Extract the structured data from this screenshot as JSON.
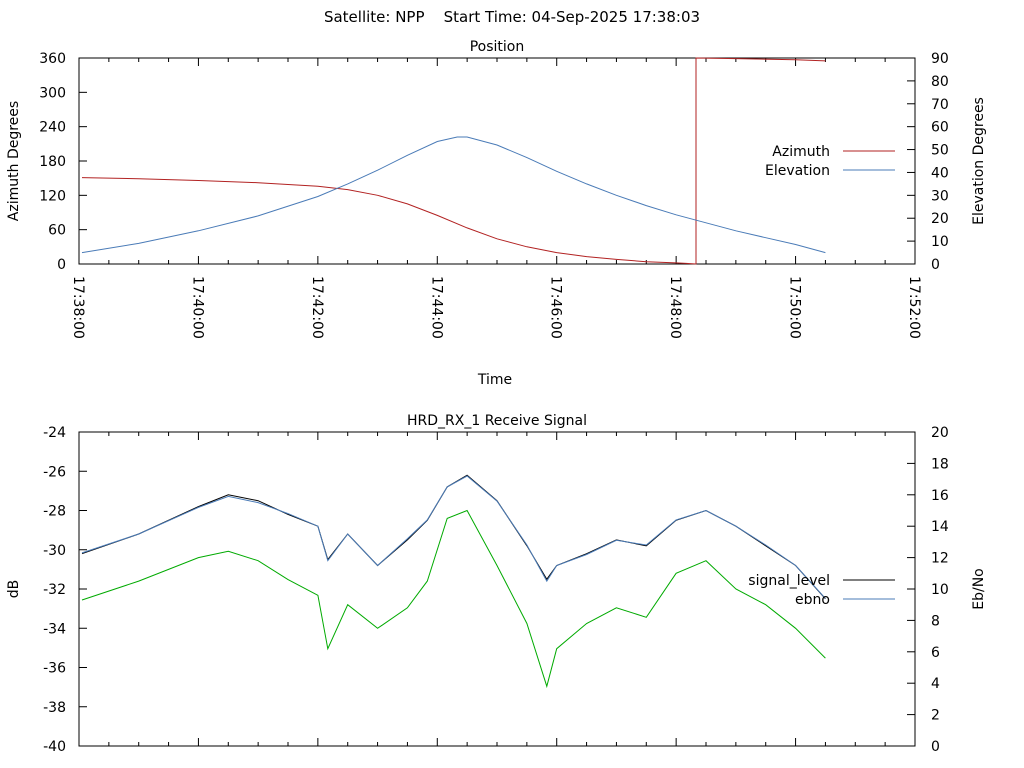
{
  "header": {
    "title": "Satellite: NPP    Start Time: 04-Sep-2025 17:38:03"
  },
  "chart_data": [
    {
      "type": "line",
      "title": "Position",
      "xlabel": "Time",
      "ylabel": "Azimuth Degrees",
      "y2label": "Elevation Degrees",
      "xlim": [
        "17:38:00",
        "17:52:00"
      ],
      "ylim": [
        0,
        360
      ],
      "y2lim": [
        0,
        90
      ],
      "xticks": [
        "17:38:00",
        "17:40:00",
        "17:42:00",
        "17:44:00",
        "17:46:00",
        "17:48:00",
        "17:50:00",
        "17:52:00"
      ],
      "yticks": [
        "0",
        "60",
        "120",
        "180",
        "240",
        "300",
        "360"
      ],
      "y2ticks": [
        "0",
        "10",
        "20",
        "30",
        "40",
        "50",
        "60",
        "70",
        "80",
        "90"
      ],
      "legend_position": "right",
      "series": [
        {
          "name": "Azimuth",
          "axis": "y",
          "color": "#b22222",
          "x": [
            "17:38:03",
            "17:39:00",
            "17:40:00",
            "17:41:00",
            "17:42:00",
            "17:42:30",
            "17:43:00",
            "17:43:30",
            "17:44:00",
            "17:44:30",
            "17:45:00",
            "17:45:30",
            "17:46:00",
            "17:46:30",
            "17:47:00",
            "17:47:30",
            "17:48:00",
            "17:48:10",
            "17:48:20",
            "17:48:20",
            "17:49:00",
            "17:50:00",
            "17:50:30"
          ],
          "values": [
            151,
            149,
            146,
            142,
            136,
            130,
            120,
            105,
            85,
            63,
            44,
            30,
            20,
            13,
            8,
            4,
            2,
            1,
            0,
            360,
            359,
            357,
            355
          ]
        },
        {
          "name": "Elevation",
          "axis": "y2",
          "color": "#4a7bb7",
          "x": [
            "17:38:03",
            "17:39:00",
            "17:40:00",
            "17:41:00",
            "17:42:00",
            "17:42:30",
            "17:43:00",
            "17:43:30",
            "17:44:00",
            "17:44:20",
            "17:44:30",
            "17:45:00",
            "17:45:30",
            "17:46:00",
            "17:46:30",
            "17:47:00",
            "17:47:30",
            "17:48:00",
            "17:48:30",
            "17:49:00",
            "17:49:30",
            "17:50:00",
            "17:50:30"
          ],
          "values": [
            5,
            9,
            14.5,
            21,
            29.5,
            35,
            41,
            47.5,
            53.5,
            55.5,
            55.5,
            52,
            46.5,
            40.5,
            35,
            30,
            25.5,
            21.5,
            18,
            14.5,
            11.5,
            8.5,
            5
          ]
        }
      ]
    },
    {
      "type": "line",
      "title": "HRD_RX_1 Receive Signal",
      "xlabel": "",
      "ylabel": "dB",
      "y2label": "Eb/No",
      "ylim": [
        -40,
        -24
      ],
      "y2lim": [
        0,
        20
      ],
      "yticks": [
        "-40",
        "-38",
        "-36",
        "-34",
        "-32",
        "-30",
        "-28",
        "-26",
        "-24"
      ],
      "y2ticks": [
        "0",
        "2",
        "4",
        "6",
        "8",
        "10",
        "12",
        "14",
        "16",
        "18",
        "20"
      ],
      "legend_position": "right",
      "series": [
        {
          "name": "signal_level",
          "axis": "y",
          "color": "#000000",
          "x": [
            "17:38:03",
            "17:39:00",
            "17:40:00",
            "17:40:30",
            "17:41:00",
            "17:41:30",
            "17:42:00",
            "17:42:10",
            "17:42:30",
            "17:43:00",
            "17:43:30",
            "17:43:50",
            "17:44:10",
            "17:44:30",
            "17:45:00",
            "17:45:30",
            "17:45:50",
            "17:46:00",
            "17:46:30",
            "17:47:00",
            "17:47:30",
            "17:48:00",
            "17:48:30",
            "17:49:00",
            "17:49:30",
            "17:50:00",
            "17:50:30"
          ],
          "values": [
            -30.2,
            -29.2,
            -27.8,
            -27.2,
            -27.5,
            -28.2,
            -28.8,
            -30.5,
            -29.2,
            -30.8,
            -29.5,
            -28.5,
            -26.8,
            -26.2,
            -27.5,
            -29.8,
            -31.5,
            -30.8,
            -30.2,
            -29.5,
            -29.8,
            -28.5,
            -28.0,
            -28.8,
            -29.8,
            -30.8,
            -32.5
          ]
        },
        {
          "name": "ebno",
          "axis": "y2",
          "color": "#4a7bb7",
          "x": [
            "17:38:03",
            "17:39:00",
            "17:40:00",
            "17:40:30",
            "17:41:00",
            "17:41:30",
            "17:42:00",
            "17:42:10",
            "17:42:30",
            "17:43:00",
            "17:43:30",
            "17:43:50",
            "17:44:10",
            "17:44:30",
            "17:45:00",
            "17:45:30",
            "17:45:50",
            "17:46:00",
            "17:46:30",
            "17:47:00",
            "17:47:30",
            "17:48:00",
            "17:48:30",
            "17:49:00",
            "17:49:30",
            "17:50:00",
            "17:50:30"
          ],
          "values": [
            12.3,
            13.5,
            15.2,
            15.9,
            15.5,
            14.8,
            14.0,
            11.8,
            13.5,
            11.5,
            13.2,
            14.4,
            16.5,
            17.2,
            15.6,
            12.8,
            10.5,
            11.5,
            12.2,
            13.1,
            12.8,
            14.4,
            15.0,
            14.0,
            12.8,
            11.5,
            9.4
          ]
        },
        {
          "name": "",
          "axis": "y2",
          "color": "#00aa00",
          "legend": false,
          "x": [
            "17:38:03",
            "17:39:00",
            "17:40:00",
            "17:40:30",
            "17:41:00",
            "17:41:30",
            "17:42:00",
            "17:42:10",
            "17:42:30",
            "17:43:00",
            "17:43:30",
            "17:43:50",
            "17:44:10",
            "17:44:30",
            "17:45:00",
            "17:45:30",
            "17:45:50",
            "17:46:00",
            "17:46:30",
            "17:47:00",
            "17:47:30",
            "17:48:00",
            "17:48:30",
            "17:49:00",
            "17:49:30",
            "17:50:00",
            "17:50:30"
          ],
          "values": [
            9.3,
            10.5,
            12.0,
            12.4,
            11.8,
            10.6,
            9.6,
            6.2,
            9.0,
            7.5,
            8.8,
            10.5,
            14.5,
            15.0,
            11.5,
            7.8,
            3.8,
            6.2,
            7.8,
            8.8,
            8.2,
            11.0,
            11.8,
            10.0,
            9.0,
            7.5,
            5.6
          ]
        }
      ]
    }
  ]
}
